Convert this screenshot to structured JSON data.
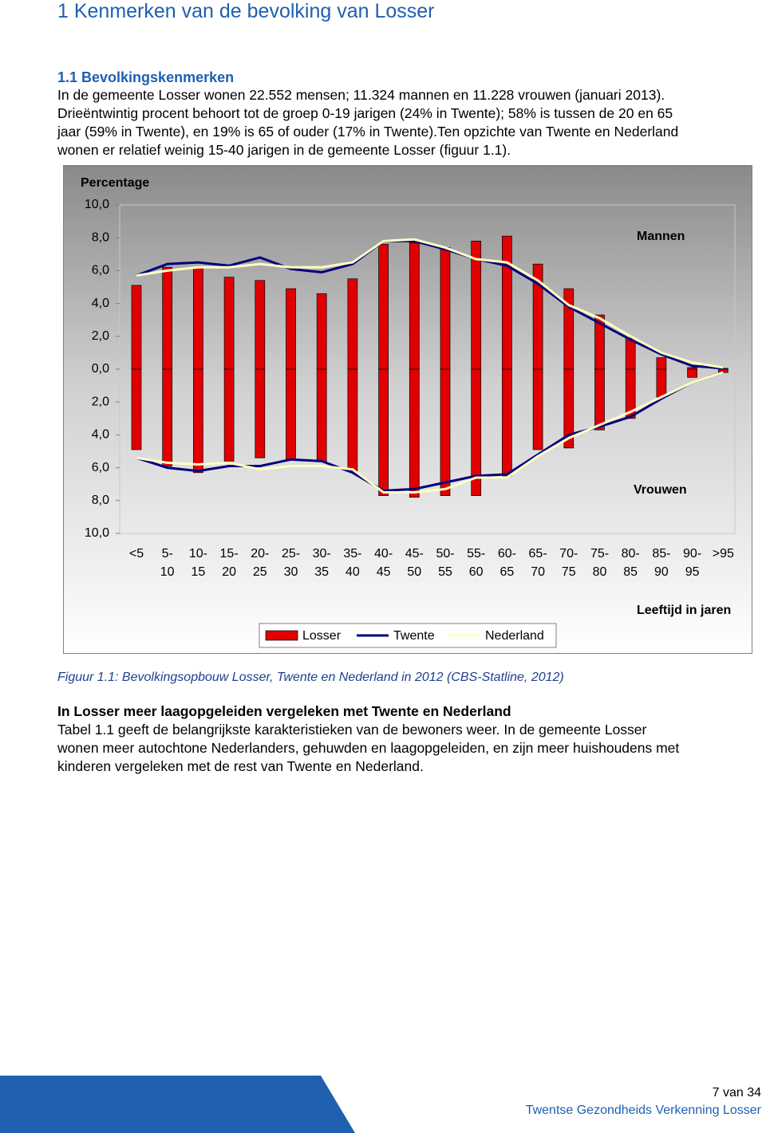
{
  "header": {
    "title": "1 Kenmerken van de bevolking van Losser",
    "subtitle": "1.1 Bevolkingskenmerken"
  },
  "intro": {
    "lines": [
      "In de gemeente Losser wonen 22.552 mensen; 11.324 mannen en 11.228 vrouwen (januari 2013).",
      "Drieëntwintig procent behoort tot de groep 0-19 jarigen (24% in Twente); 58% is tussen de 20 en 65",
      "jaar (59% in Twente), en 19% is 65 of ouder (17% in Twente).Ten opzichte van Twente en Nederland",
      "wonen er relatief weinig 15-40 jarigen in de gemeente Losser (figuur 1.1)."
    ]
  },
  "chart_data": {
    "type": "bar",
    "y_label": "Percentage",
    "x_label": "Leeftijd in jaren",
    "annotations": [
      "Mannen",
      "Vrouwen"
    ],
    "categories": [
      "<5",
      "5- 10",
      "10- 15",
      "15- 20",
      "20- 25",
      "25- 30",
      "30- 35",
      "35- 40",
      "40- 45",
      "45- 50",
      "50- 55",
      "55- 60",
      "60- 65",
      "65- 70",
      "70- 75",
      "75- 80",
      "80- 85",
      "85- 90",
      "90- 95",
      ">95"
    ],
    "ylim": [
      -10,
      10
    ],
    "yticks": [
      {
        "value": 10,
        "label": "10,0"
      },
      {
        "value": 8,
        "label": "8,0"
      },
      {
        "value": 6,
        "label": "6,0"
      },
      {
        "value": 4,
        "label": "4,0"
      },
      {
        "value": 2,
        "label": "2,0"
      },
      {
        "value": 0,
        "label": "0,0"
      },
      {
        "value": -2,
        "label": "2,0"
      },
      {
        "value": -4,
        "label": "4,0"
      },
      {
        "value": -6,
        "label": "6,0"
      },
      {
        "value": -8,
        "label": "8,0"
      },
      {
        "value": -10,
        "label": "10,0"
      }
    ],
    "series": [
      {
        "name": "Losser",
        "type": "bar",
        "color": "#e00000",
        "men": [
          5.1,
          6.2,
          6.2,
          5.6,
          5.4,
          4.9,
          4.6,
          5.5,
          7.6,
          7.7,
          7.4,
          7.8,
          8.1,
          6.4,
          4.9,
          3.3,
          1.9,
          0.7,
          0.1,
          0.05
        ],
        "women": [
          -4.9,
          -5.9,
          -6.3,
          -5.6,
          -5.4,
          -5.5,
          -5.6,
          -6.2,
          -7.7,
          -7.8,
          -7.7,
          -7.7,
          -6.5,
          -4.9,
          -4.8,
          -3.7,
          -3.0,
          -1.7,
          -0.5,
          -0.2
        ]
      },
      {
        "name": "Twente",
        "type": "line",
        "color": "#000080",
        "men": [
          5.7,
          6.4,
          6.5,
          6.3,
          6.8,
          6.1,
          5.9,
          6.4,
          7.8,
          7.8,
          7.3,
          6.7,
          6.3,
          5.2,
          3.8,
          2.8,
          1.8,
          0.9,
          0.2,
          0.05
        ],
        "women": [
          -5.4,
          -6.0,
          -6.2,
          -5.9,
          -5.9,
          -5.5,
          -5.6,
          -6.3,
          -7.4,
          -7.3,
          -6.9,
          -6.5,
          -6.4,
          -5.2,
          -4.0,
          -3.5,
          -2.9,
          -1.8,
          -0.8,
          -0.2
        ]
      },
      {
        "name": "Nederland",
        "type": "line",
        "color": "#ffffc0",
        "men": [
          5.7,
          6.0,
          6.2,
          6.2,
          6.4,
          6.2,
          6.2,
          6.5,
          7.8,
          7.9,
          7.4,
          6.7,
          6.5,
          5.4,
          3.9,
          3.1,
          2.0,
          1.0,
          0.4,
          0.1
        ],
        "women": [
          -5.4,
          -5.7,
          -5.8,
          -5.7,
          -6.1,
          -5.9,
          -5.9,
          -6.1,
          -7.5,
          -7.5,
          -7.3,
          -6.6,
          -6.6,
          -5.3,
          -4.2,
          -3.4,
          -2.6,
          -1.7,
          -0.8,
          -0.2
        ]
      }
    ]
  },
  "caption": "Figuur 1.1: Bevolkingsopbouw Losser, Twente en Nederland in 2012 (CBS-Statline, 2012)",
  "section": {
    "title": "In Losser meer laagopgeleiden vergeleken met Twente en Nederland",
    "lines": [
      "Tabel 1.1 geeft de belangrijkste karakteristieken van de bewoners weer. In de gemeente Losser",
      "wonen meer autochtone Nederlanders, gehuwden en laagopgeleiden, en zijn meer huishoudens met",
      "kinderen vergeleken met de rest van Twente en Nederland."
    ]
  },
  "footer": {
    "page": "7 van 34",
    "name": "Twentse Gezondheids Verkenning Losser"
  }
}
